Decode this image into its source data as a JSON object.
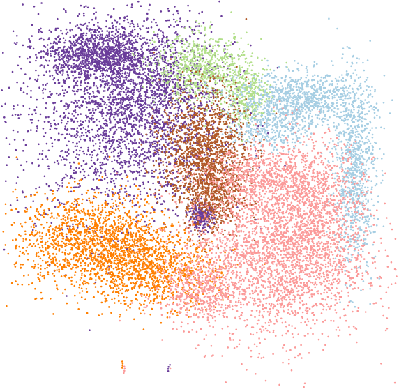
{
  "chart_data": {
    "type": "scatter",
    "title": "",
    "xlabel": "",
    "ylabel": "",
    "axes_visible": false,
    "grid": false,
    "legend": "none",
    "background": "#ffffff",
    "series": [
      {
        "color": "#6a3d9a",
        "point_count_shown": 150000,
        "regions": [
          {
            "x": -0.45,
            "y": 0.45,
            "sx": 0.28,
            "sy": 0.32,
            "n": 2300
          },
          {
            "x": -0.58,
            "y": 0.78,
            "sx": 0.15,
            "sy": 0.07,
            "n": 900
          },
          {
            "x": -0.25,
            "y": 0.55,
            "sx": 0.18,
            "sy": 0.22,
            "n": 900
          },
          {
            "x": 0.01,
            "y": -0.17,
            "sx": 0.035,
            "sy": 0.035,
            "n": 250
          }
        ]
      },
      {
        "color": "#b2df8a",
        "point_count_shown": 40000,
        "regions": [
          {
            "x": 0.02,
            "y": 0.7,
            "sx": 0.13,
            "sy": 0.1,
            "n": 700
          },
          {
            "x": 0.26,
            "y": 0.54,
            "sx": 0.07,
            "sy": 0.09,
            "n": 350
          }
        ]
      },
      {
        "color": "#b15928",
        "point_count_shown": 60000,
        "regions": [
          {
            "x": 0.03,
            "y": 0.22,
            "sx": 0.12,
            "sy": 0.18,
            "n": 1300
          },
          {
            "x": 0.08,
            "y": -0.05,
            "sx": 0.08,
            "sy": 0.12,
            "n": 450
          }
        ]
      },
      {
        "color": "#ff7f00",
        "point_count_shown": 90000,
        "regions": [
          {
            "x": -0.58,
            "y": -0.32,
            "sx": 0.22,
            "sy": 0.14,
            "n": 1600
          },
          {
            "x": -0.25,
            "y": -0.5,
            "sx": 0.18,
            "sy": 0.1,
            "n": 800
          }
        ]
      },
      {
        "color": "#a6cee3",
        "point_count_shown": 80000,
        "regions": [
          {
            "x": 0.58,
            "y": 0.52,
            "sx": 0.18,
            "sy": 0.08,
            "n": 900
          },
          {
            "x": 0.86,
            "y": 0.1,
            "sx": 0.06,
            "sy": 0.28,
            "n": 900
          },
          {
            "x": 0.4,
            "y": 0.36,
            "sx": 0.1,
            "sy": 0.07,
            "n": 300
          }
        ]
      },
      {
        "color": "#fb9a99",
        "point_count_shown": 160000,
        "regions": [
          {
            "x": 0.42,
            "y": -0.42,
            "sx": 0.26,
            "sy": 0.24,
            "n": 2400
          },
          {
            "x": 0.62,
            "y": -0.1,
            "sx": 0.14,
            "sy": 0.2,
            "n": 900
          },
          {
            "x": 0.34,
            "y": 0.06,
            "sx": 0.16,
            "sy": 0.08,
            "n": 600
          },
          {
            "x": 0.0,
            "y": -0.6,
            "sx": 0.12,
            "sy": 0.08,
            "n": 400
          }
        ]
      }
    ],
    "stragglers": [
      {
        "color": "#ff7f00",
        "x": -0.43,
        "y": -1.02
      },
      {
        "color": "#fb9a99",
        "x": -0.42,
        "y": -1.05
      },
      {
        "color": "#6a3d9a",
        "x": -0.17,
        "y": -1.04
      }
    ],
    "xlim": [
      -1.0,
      1.0
    ],
    "ylim": [
      -1.1,
      1.0
    ]
  }
}
